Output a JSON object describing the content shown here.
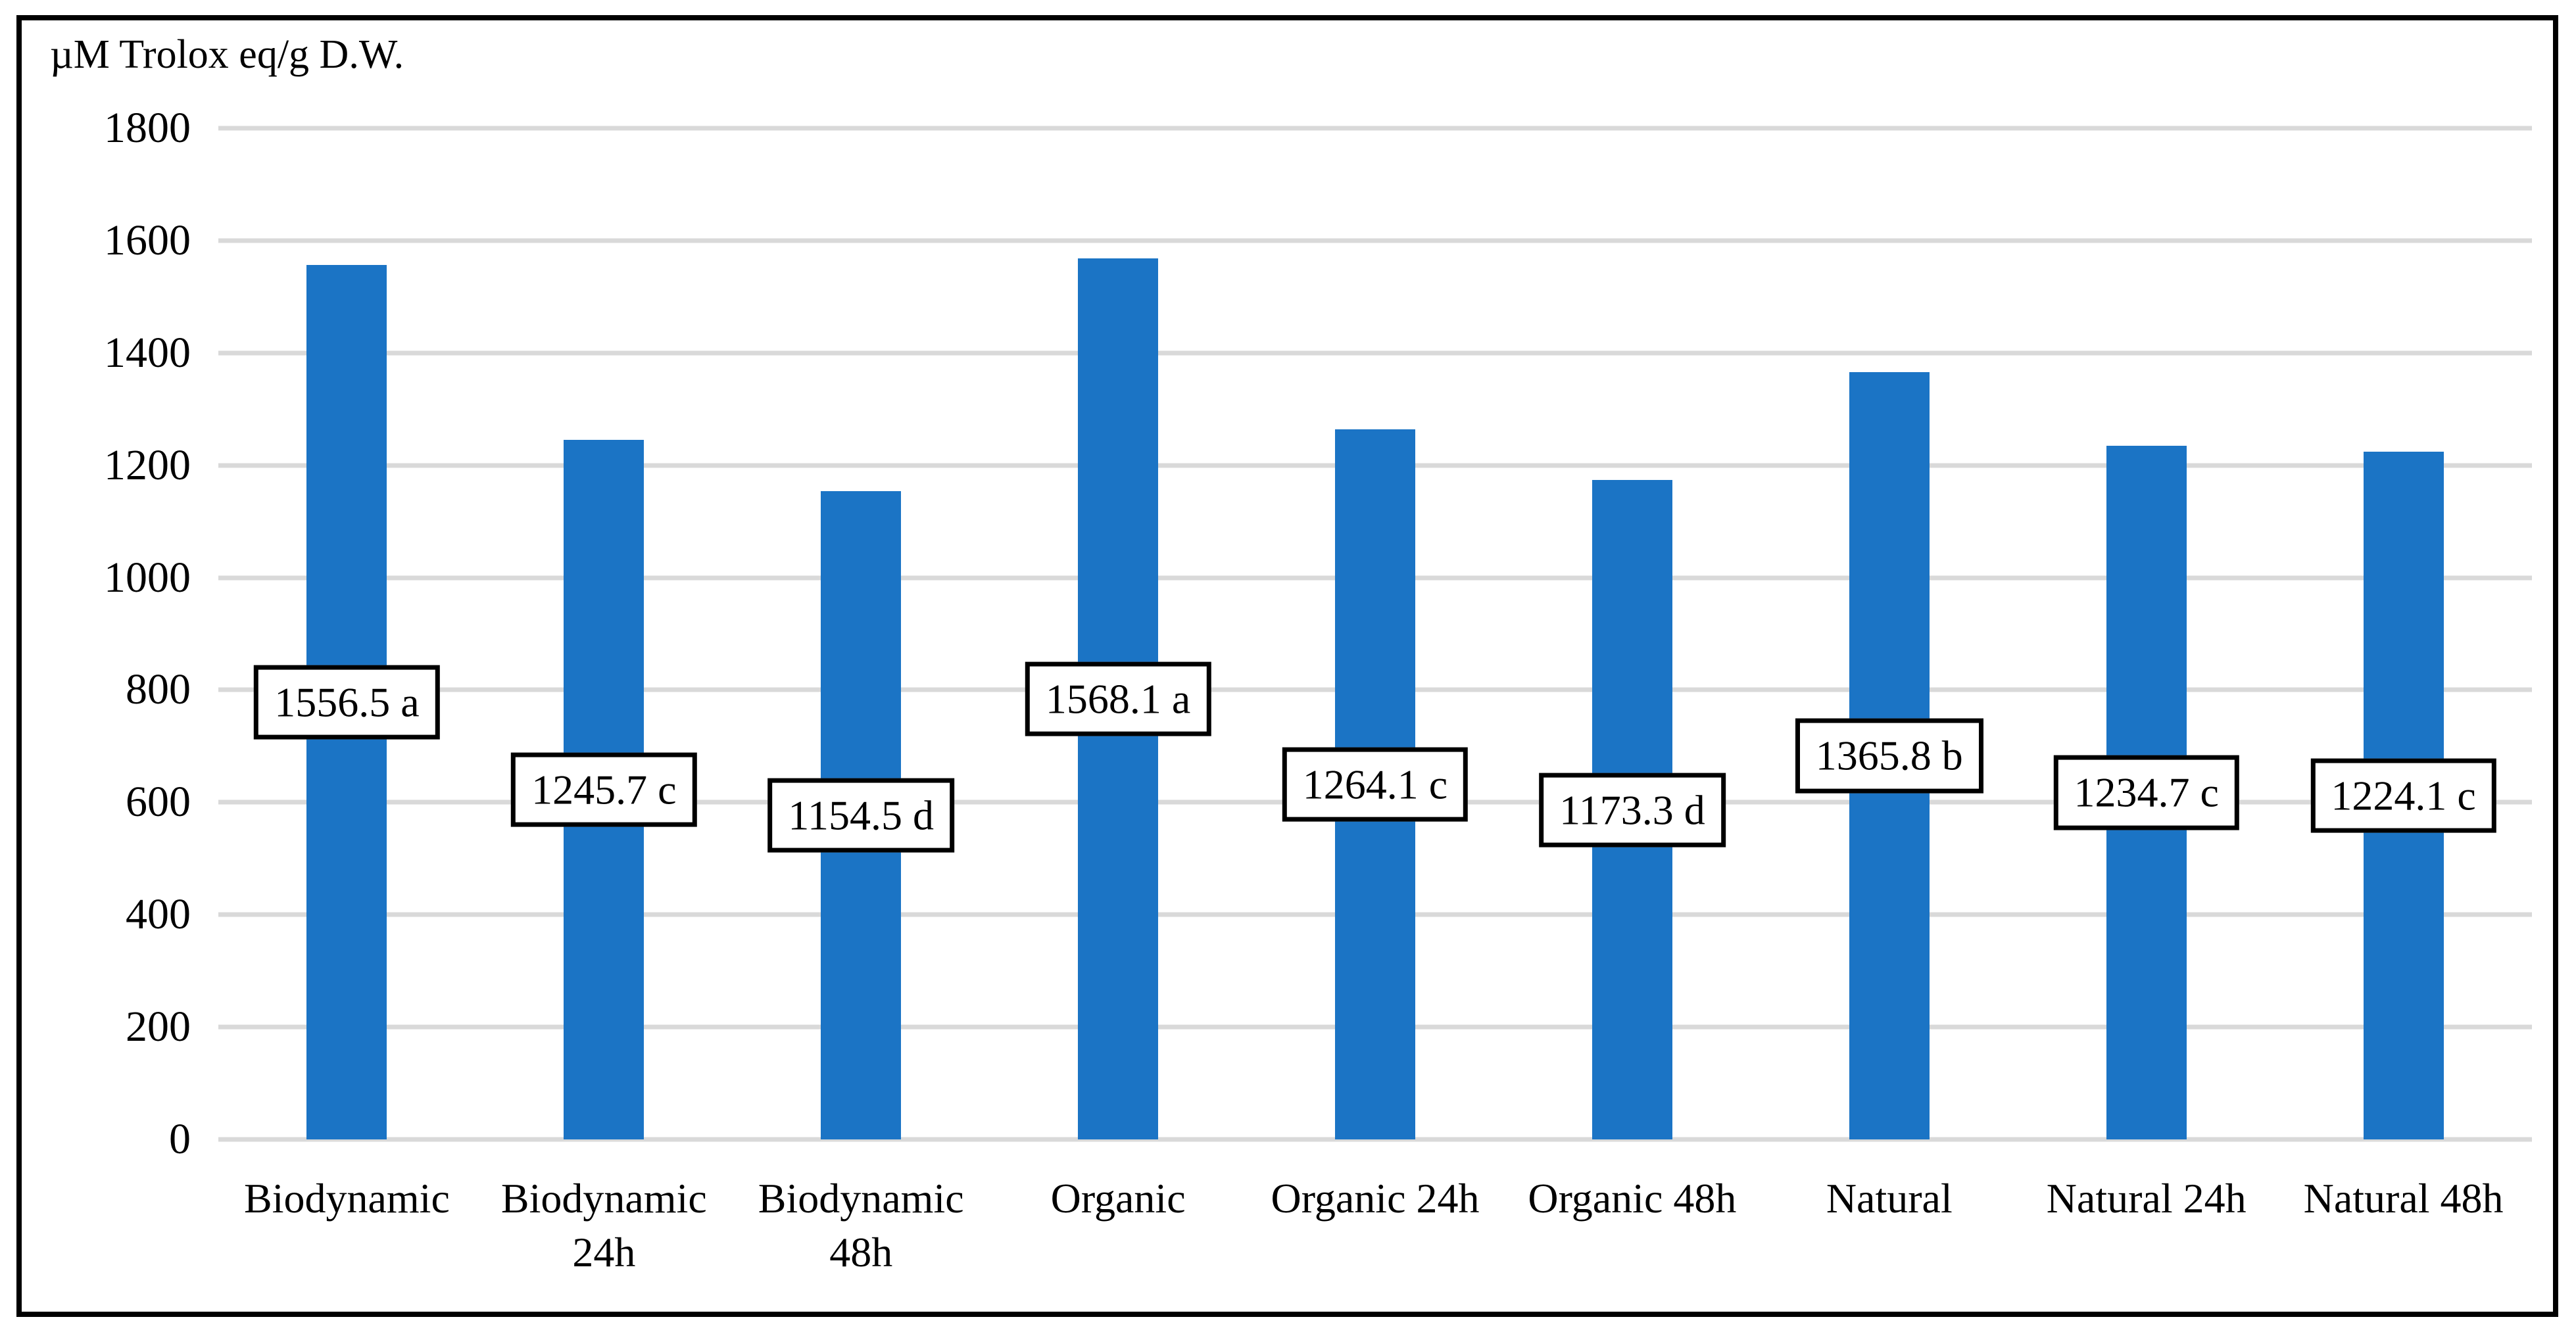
{
  "figure": {
    "title": "µM Trolox eq/g D.W."
  },
  "chart_data": {
    "type": "bar",
    "title": "µM Trolox eq/g D.W.",
    "xlabel": "",
    "ylabel": "µM Trolox eq/g D.W.",
    "ylim": [
      0,
      1800
    ],
    "ytick_step": 200,
    "yticks": [
      1800,
      1600,
      1400,
      1200,
      1000,
      800,
      600,
      400,
      200,
      0
    ],
    "grid": "horizontal",
    "legend_position": "none",
    "bar_color": "#1B74C5",
    "gridline_color": "#D9D9D9",
    "label_box": {
      "fill": "#FFFFFF",
      "border_color": "#000000"
    },
    "categories": [
      "Biodynamic",
      "Biodynamic 24h",
      "Biodynamic 48h",
      "Organic",
      "Organic 24h",
      "Organic 48h",
      "Natural",
      "Natural 24h",
      "Natural 48h"
    ],
    "category_display": [
      "Biodynamic",
      "Biodynamic\n24h",
      "Biodynamic\n48h",
      "Organic",
      "Organic 24h",
      "Organic 48h",
      "Natural",
      "Natural 24h",
      "Natural 48h"
    ],
    "values": [
      1556.5,
      1245.7,
      1154.5,
      1568.1,
      1264.1,
      1173.3,
      1365.8,
      1234.7,
      1224.1
    ],
    "significance_letters": [
      "a",
      "c",
      "d",
      "a",
      "c",
      "d",
      "b",
      "c",
      "c"
    ],
    "data_labels": [
      "1556.5 a",
      "1245.7 c",
      "1154.5 d",
      "1568.1 a",
      "1264.1 c",
      "1173.3 d",
      "1365.8 b",
      "1234.7 c",
      "1224.1 c"
    ]
  }
}
